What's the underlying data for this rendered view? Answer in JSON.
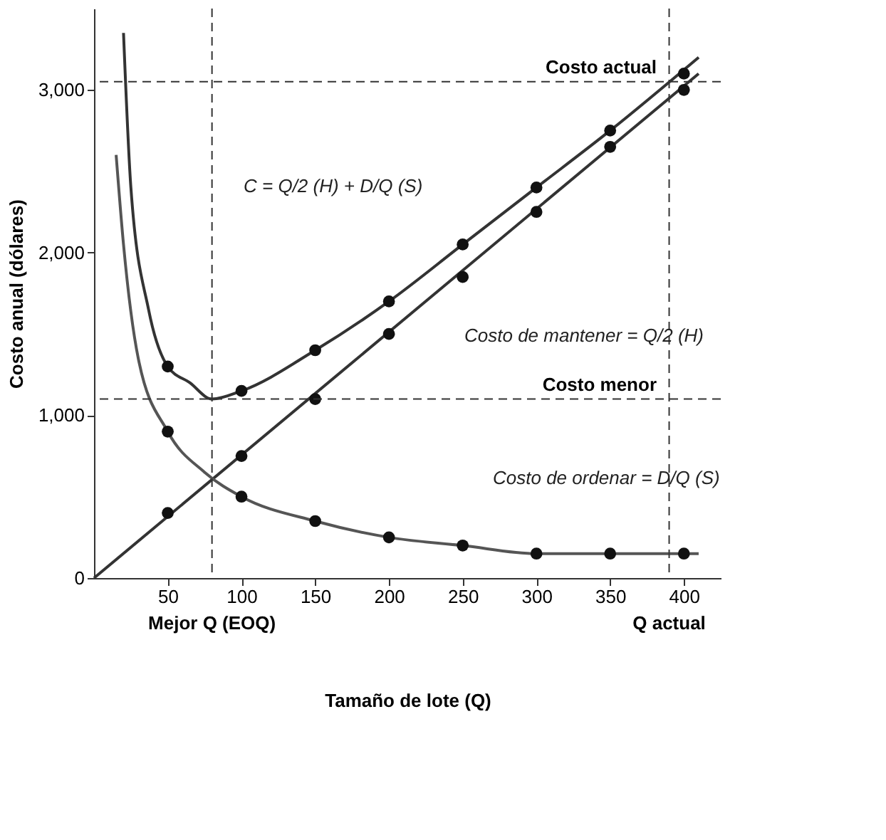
{
  "chart_data": {
    "type": "line",
    "xlabel": "Tamaño de lote (Q)",
    "ylabel": "Costo anual (dólares)",
    "xlim": [
      0,
      425
    ],
    "ylim": [
      0,
      3500
    ],
    "xticks": [
      50,
      100,
      150,
      200,
      250,
      300,
      350,
      400
    ],
    "yticks": [
      0,
      {
        "value": 1000,
        "label": "1,000"
      },
      {
        "value": 2000,
        "label": "2,000"
      },
      {
        "value": 3000,
        "label": "3,000"
      }
    ],
    "grid": false,
    "series": [
      {
        "color": "#333333",
        "marker": "none",
        "x": [
          20,
          25,
          37,
          50,
          65,
          80,
          100,
          150,
          200,
          250,
          300,
          350,
          410
        ],
        "values": [
          3350,
          2400,
          1650,
          1300,
          1200,
          1100,
          1150,
          1400,
          1700,
          2050,
          2400,
          2750,
          3200
        ]
      },
      {
        "color": "#333333",
        "marker": "none",
        "x": [
          0,
          410
        ],
        "values": [
          0,
          3100
        ]
      },
      {
        "color": "#555555",
        "marker": "none",
        "x": [
          15,
          20,
          30,
          50,
          75,
          100,
          150,
          200,
          250,
          300,
          350,
          410
        ],
        "values": [
          2600,
          2050,
          1350,
          900,
          650,
          500,
          350,
          250,
          200,
          150,
          150,
          150
        ]
      },
      {
        "type": "scatter",
        "color": "#111111",
        "marker": "circle",
        "x": [
          50,
          100,
          150,
          200,
          250,
          300,
          350,
          400
        ],
        "values": [
          1300,
          1150,
          1400,
          1700,
          2050,
          2400,
          2750,
          3100
        ]
      },
      {
        "type": "scatter",
        "color": "#111111",
        "marker": "circle",
        "x": [
          50,
          100,
          150,
          200,
          250,
          300,
          350,
          400
        ],
        "values": [
          400,
          750,
          1100,
          1500,
          1850,
          2250,
          2650,
          3000
        ]
      },
      {
        "type": "scatter",
        "color": "#111111",
        "marker": "circle",
        "x": [
          50,
          100,
          150,
          200,
          250,
          300,
          350,
          400
        ],
        "values": [
          900,
          500,
          350,
          250,
          200,
          150,
          150,
          150
        ]
      }
    ],
    "ref_lines": [
      {
        "axis": "y",
        "value": 3050,
        "label": "Costo actual",
        "line_style": "dashed"
      },
      {
        "axis": "y",
        "value": 1100,
        "label": "Costo menor",
        "line_style": "dashed"
      },
      {
        "axis": "x",
        "value": 80,
        "label": "Mejor Q (EOQ)",
        "line_style": "dashed"
      },
      {
        "axis": "x",
        "value": 390,
        "label": "Q actual",
        "line_style": "dashed"
      }
    ],
    "annotations": [
      "C = Q/2 (H) + D/Q (S)",
      "Costo de mantener = Q/2 (H)",
      "Costo de ordenar = D/Q (S)"
    ]
  }
}
